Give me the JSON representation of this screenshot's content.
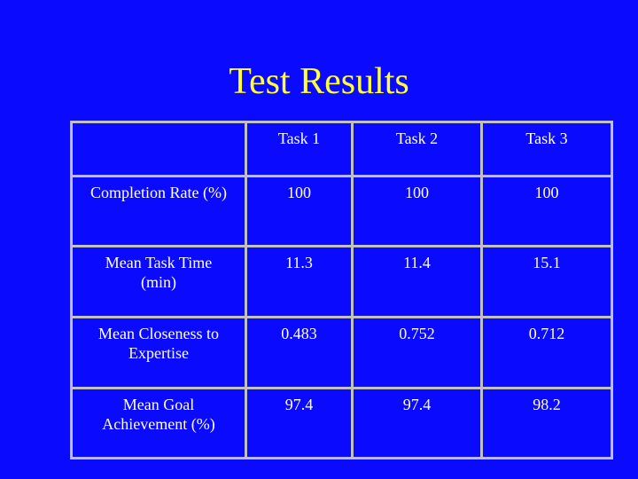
{
  "title": "Test Results",
  "table": {
    "columns": [
      "Task 1",
      "Task 2",
      "Task 3"
    ],
    "rows": [
      {
        "label": "Completion Rate (%)",
        "values": [
          100,
          100,
          100
        ]
      },
      {
        "label": "Mean Task Time (min)",
        "values": [
          11.3,
          11.4,
          15.1
        ]
      },
      {
        "label": "Mean Closeness to Expertise",
        "values": [
          0.483,
          0.752,
          0.712
        ]
      },
      {
        "label": "Mean Goal Achievement (%)",
        "values": [
          97.4,
          97.4,
          98.2
        ]
      }
    ]
  }
}
